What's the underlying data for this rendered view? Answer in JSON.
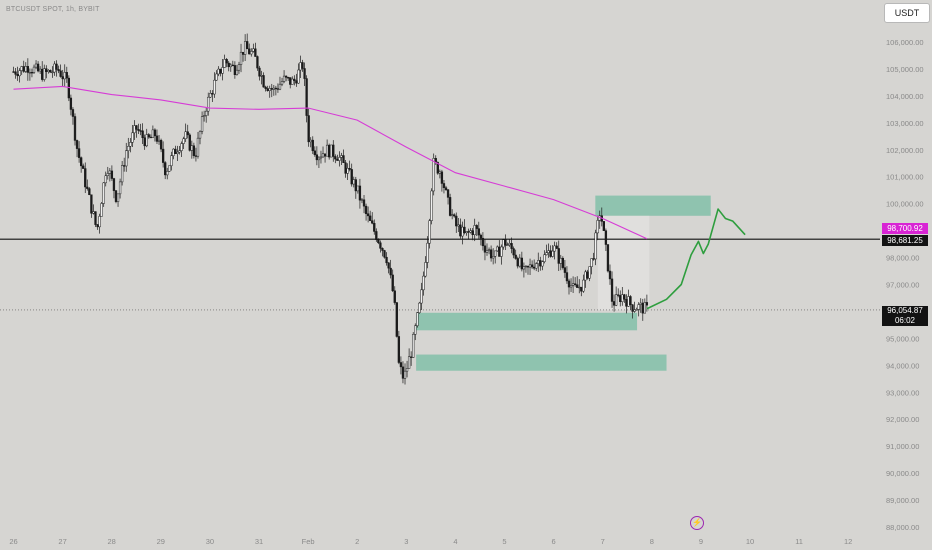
{
  "header": {
    "symbol_title": "BTCUSDT SPOT, 1h, BYBIT",
    "currency_button": "USDT"
  },
  "price_tags": {
    "ma_value": "98,700.92",
    "hline_value": "98,681.25",
    "current_price": "96,054.87",
    "countdown": "06:02"
  },
  "icons": {
    "flash": "lightning-icon"
  },
  "colors": {
    "background": "#d6d5d2",
    "candle": "#1b1b1b",
    "moving_average": "#d63cd6",
    "zone": "#82bfa9",
    "projection": "#2e9e3e",
    "hline": "#111111"
  },
  "chart_data": {
    "type": "candlestick",
    "title": "BTCUSDT SPOT, 1h, BYBIT",
    "ylim": [
      87800,
      106500
    ],
    "y_ticks": [
      88000,
      89000,
      90000,
      91000,
      92000,
      93000,
      94000,
      95000,
      96000,
      97000,
      98000,
      99000,
      100000,
      101000,
      102000,
      103000,
      104000,
      105000,
      106000
    ],
    "y_tick_labels": [
      "88,000.00",
      "89,000.00",
      "90,000.00",
      "91,000.00",
      "92,000.00",
      "93,000.00",
      "94,000.00",
      "95,000.00",
      "96,000.00",
      "97,000.00",
      "98,000.00",
      "99,000.00",
      "100,000.00",
      "101,000.00",
      "102,000.00",
      "103,000.00",
      "104,000.00",
      "105,000.00",
      "106,000.00"
    ],
    "x_ticks": [
      26,
      27,
      28,
      29,
      30,
      31,
      32,
      33,
      34,
      35,
      36,
      37,
      38,
      39,
      40,
      41,
      42,
      43
    ],
    "x_tick_labels": [
      "26",
      "27",
      "28",
      "29",
      "30",
      "31",
      "Feb",
      "2",
      "3",
      "4",
      "5",
      "6",
      "7",
      "8",
      "9",
      "10",
      "11",
      "12"
    ],
    "close_path": [
      {
        "x": 26.0,
        "y": 104900
      },
      {
        "x": 26.3,
        "y": 105100
      },
      {
        "x": 26.6,
        "y": 104800
      },
      {
        "x": 26.9,
        "y": 105000
      },
      {
        "x": 27.1,
        "y": 104500
      },
      {
        "x": 27.3,
        "y": 102000
      },
      {
        "x": 27.5,
        "y": 100500
      },
      {
        "x": 27.7,
        "y": 99000
      },
      {
        "x": 27.9,
        "y": 101500
      },
      {
        "x": 28.1,
        "y": 100200
      },
      {
        "x": 28.3,
        "y": 102000
      },
      {
        "x": 28.5,
        "y": 102800
      },
      {
        "x": 28.7,
        "y": 102300
      },
      {
        "x": 28.9,
        "y": 102600
      },
      {
        "x": 29.1,
        "y": 101200
      },
      {
        "x": 29.3,
        "y": 102000
      },
      {
        "x": 29.5,
        "y": 102500
      },
      {
        "x": 29.7,
        "y": 101800
      },
      {
        "x": 29.9,
        "y": 103500
      },
      {
        "x": 30.1,
        "y": 104500
      },
      {
        "x": 30.3,
        "y": 105300
      },
      {
        "x": 30.5,
        "y": 105000
      },
      {
        "x": 30.7,
        "y": 105800
      },
      {
        "x": 30.9,
        "y": 105500
      },
      {
        "x": 31.1,
        "y": 104500
      },
      {
        "x": 31.3,
        "y": 104200
      },
      {
        "x": 31.5,
        "y": 104600
      },
      {
        "x": 31.7,
        "y": 104500
      },
      {
        "x": 31.9,
        "y": 105200
      },
      {
        "x": 32.0,
        "y": 102500
      },
      {
        "x": 32.2,
        "y": 101800
      },
      {
        "x": 32.4,
        "y": 102000
      },
      {
        "x": 32.6,
        "y": 101800
      },
      {
        "x": 32.8,
        "y": 101200
      },
      {
        "x": 33.0,
        "y": 100500
      },
      {
        "x": 33.2,
        "y": 99500
      },
      {
        "x": 33.4,
        "y": 98800
      },
      {
        "x": 33.6,
        "y": 98000
      },
      {
        "x": 33.75,
        "y": 96500
      },
      {
        "x": 33.85,
        "y": 94000
      },
      {
        "x": 33.95,
        "y": 93500
      },
      {
        "x": 34.1,
        "y": 94500
      },
      {
        "x": 34.3,
        "y": 96500
      },
      {
        "x": 34.45,
        "y": 99000
      },
      {
        "x": 34.55,
        "y": 101500
      },
      {
        "x": 34.7,
        "y": 101200
      },
      {
        "x": 34.85,
        "y": 100000
      },
      {
        "x": 35.0,
        "y": 99200
      },
      {
        "x": 35.2,
        "y": 98800
      },
      {
        "x": 35.4,
        "y": 99100
      },
      {
        "x": 35.6,
        "y": 98400
      },
      {
        "x": 35.8,
        "y": 98000
      },
      {
        "x": 36.0,
        "y": 98600
      },
      {
        "x": 36.2,
        "y": 98200
      },
      {
        "x": 36.4,
        "y": 97400
      },
      {
        "x": 36.6,
        "y": 97800
      },
      {
        "x": 36.8,
        "y": 98000
      },
      {
        "x": 37.0,
        "y": 98400
      },
      {
        "x": 37.2,
        "y": 97600
      },
      {
        "x": 37.4,
        "y": 96800
      },
      {
        "x": 37.6,
        "y": 97000
      },
      {
        "x": 37.8,
        "y": 98000
      },
      {
        "x": 37.95,
        "y": 99800
      },
      {
        "x": 38.1,
        "y": 97800
      },
      {
        "x": 38.2,
        "y": 96300
      },
      {
        "x": 38.4,
        "y": 96600
      },
      {
        "x": 38.6,
        "y": 96200
      },
      {
        "x": 38.8,
        "y": 96150
      },
      {
        "x": 38.9,
        "y": 96055
      }
    ],
    "candle_count": 310,
    "moving_average": [
      {
        "x": 26.0,
        "y": 104250
      },
      {
        "x": 27.0,
        "y": 104350
      },
      {
        "x": 28.0,
        "y": 104050
      },
      {
        "x": 29.0,
        "y": 103850
      },
      {
        "x": 30.0,
        "y": 103550
      },
      {
        "x": 31.0,
        "y": 103500
      },
      {
        "x": 32.0,
        "y": 103550
      },
      {
        "x": 33.0,
        "y": 103100
      },
      {
        "x": 34.0,
        "y": 102100
      },
      {
        "x": 35.0,
        "y": 101150
      },
      {
        "x": 36.0,
        "y": 100650
      },
      {
        "x": 37.0,
        "y": 100150
      },
      {
        "x": 38.0,
        "y": 99450
      },
      {
        "x": 38.9,
        "y": 98700
      }
    ],
    "horizontal_line": 98681.25,
    "current_price": 96054.87,
    "zones": [
      {
        "x0": 37.85,
        "x1": 40.2,
        "y0": 99550,
        "y1": 100300
      },
      {
        "x0": 34.2,
        "x1": 38.7,
        "y0": 95300,
        "y1": 95950
      },
      {
        "x0": 34.2,
        "x1": 39.3,
        "y0": 93800,
        "y1": 94400
      }
    ],
    "projection": [
      {
        "x": 38.9,
        "y": 96100
      },
      {
        "x": 39.3,
        "y": 96450
      },
      {
        "x": 39.6,
        "y": 97000
      },
      {
        "x": 39.8,
        "y": 98100
      },
      {
        "x": 39.95,
        "y": 98600
      },
      {
        "x": 40.05,
        "y": 98150
      },
      {
        "x": 40.15,
        "y": 98500
      },
      {
        "x": 40.35,
        "y": 99800
      },
      {
        "x": 40.5,
        "y": 99450
      },
      {
        "x": 40.65,
        "y": 99350
      },
      {
        "x": 40.9,
        "y": 98850
      }
    ]
  }
}
